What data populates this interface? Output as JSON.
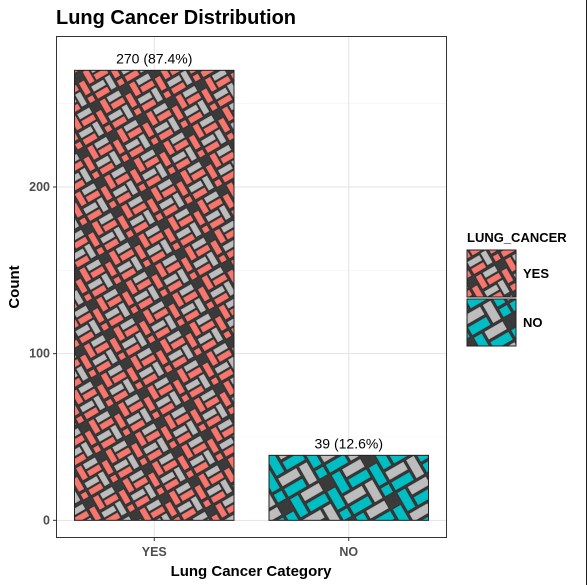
{
  "chart_data": {
    "type": "bar",
    "title": "Lung Cancer Distribution",
    "xlabel": "Lung Cancer Category",
    "ylabel": "Count",
    "categories": [
      "YES",
      "NO"
    ],
    "values": [
      270,
      39
    ],
    "data_labels": [
      "270 (87.4%)",
      "39 (12.6%)"
    ],
    "colors": [
      "#f8766d",
      "#00bfc4"
    ],
    "pattern": "weave",
    "pattern_secondary_color": "#bdbdbd",
    "ylim": [
      -10,
      290
    ],
    "yticks": [
      0,
      100,
      200
    ],
    "grid": true,
    "legend": {
      "title": "LUNG_CANCER",
      "position": "right",
      "entries": [
        "YES",
        "NO"
      ]
    }
  }
}
